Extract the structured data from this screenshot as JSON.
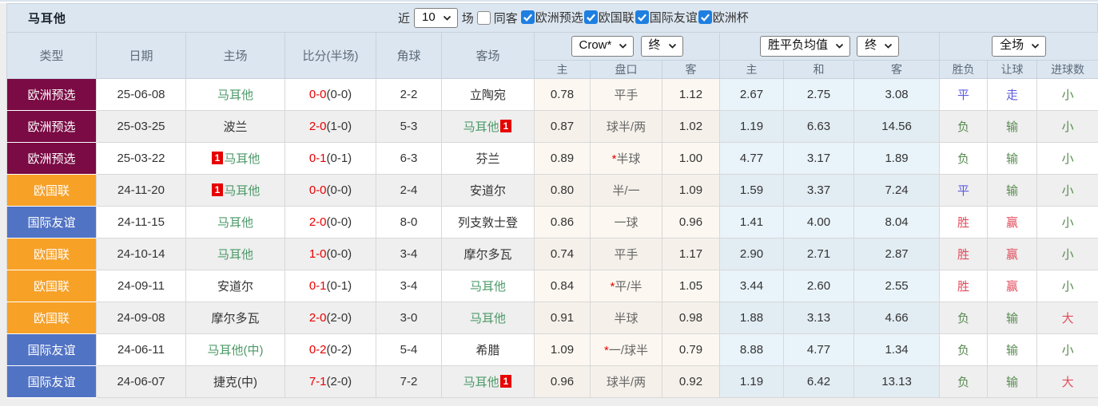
{
  "title": "马耳他",
  "controls": {
    "recent_label": "近",
    "recent_value": "10",
    "recent_suffix": "场",
    "same_away": {
      "label": "同客",
      "checked": false
    },
    "filters": [
      {
        "label": "欧洲预选",
        "checked": true
      },
      {
        "label": "欧国联",
        "checked": true
      },
      {
        "label": "国际友谊",
        "checked": true
      },
      {
        "label": "欧洲杯",
        "checked": true
      }
    ]
  },
  "table": {
    "columns": [
      "类型",
      "日期",
      "主场",
      "比分(半场)",
      "角球",
      "客场"
    ],
    "selects": {
      "bookmaker": "Crow*",
      "bookmaker_time": "终",
      "average": "胜平负均值",
      "average_time": "终",
      "scope": "全场"
    },
    "sub_columns": [
      "主",
      "盘口",
      "客",
      "主",
      "和",
      "客",
      "胜负",
      "让球",
      "进球数"
    ],
    "rows": [
      {
        "type": "欧洲预选",
        "date": "25-06-08",
        "home": {
          "name": "马耳他",
          "focus": true
        },
        "score_ft": "0-0",
        "score_ht": "(0-0)",
        "corner": "2-2",
        "away": {
          "name": "立陶宛",
          "focus": false
        },
        "crow": {
          "home": "0.78",
          "handicap": "平手",
          "star": false,
          "away": "1.12"
        },
        "avg": {
          "win": "2.67",
          "draw": "2.75",
          "lose": "3.08"
        },
        "outcome": {
          "text": "平",
          "color": "blue"
        },
        "handicap_result": {
          "text": "走",
          "color": "blue"
        },
        "goals_result": {
          "text": "小",
          "color": "green"
        }
      },
      {
        "type": "欧洲预选",
        "date": "25-03-25",
        "home": {
          "name": "波兰",
          "focus": false
        },
        "score_ft": "2-0",
        "score_ht": "(1-0)",
        "corner": "5-3",
        "away": {
          "name": "马耳他",
          "focus": true,
          "badge": "1",
          "badge_pos": "after"
        },
        "crow": {
          "home": "0.87",
          "handicap": "球半/两",
          "star": false,
          "away": "1.02"
        },
        "avg": {
          "win": "1.19",
          "draw": "6.63",
          "lose": "14.56"
        },
        "outcome": {
          "text": "负",
          "color": "green"
        },
        "handicap_result": {
          "text": "输",
          "color": "green"
        },
        "goals_result": {
          "text": "小",
          "color": "green"
        }
      },
      {
        "type": "欧洲预选",
        "date": "25-03-22",
        "home": {
          "name": "马耳他",
          "focus": true,
          "badge": "1",
          "badge_pos": "before"
        },
        "score_ft": "0-1",
        "score_ht": "(0-1)",
        "corner": "6-3",
        "away": {
          "name": "芬兰",
          "focus": false
        },
        "crow": {
          "home": "0.89",
          "handicap": "半球",
          "star": true,
          "away": "1.00"
        },
        "avg": {
          "win": "4.77",
          "draw": "3.17",
          "lose": "1.89"
        },
        "outcome": {
          "text": "负",
          "color": "green"
        },
        "handicap_result": {
          "text": "输",
          "color": "green"
        },
        "goals_result": {
          "text": "小",
          "color": "green"
        }
      },
      {
        "type": "欧国联",
        "date": "24-11-20",
        "home": {
          "name": "马耳他",
          "focus": true,
          "badge": "1",
          "badge_pos": "before"
        },
        "score_ft": "0-0",
        "score_ht": "(0-0)",
        "corner": "2-4",
        "away": {
          "name": "安道尔",
          "focus": false
        },
        "crow": {
          "home": "0.80",
          "handicap": "半/一",
          "star": false,
          "away": "1.09"
        },
        "avg": {
          "win": "1.59",
          "draw": "3.37",
          "lose": "7.24"
        },
        "outcome": {
          "text": "平",
          "color": "blue"
        },
        "handicap_result": {
          "text": "输",
          "color": "green"
        },
        "goals_result": {
          "text": "小",
          "color": "green"
        }
      },
      {
        "type": "国际友谊",
        "date": "24-11-15",
        "home": {
          "name": "马耳他",
          "focus": true
        },
        "score_ft": "2-0",
        "score_ht": "(0-0)",
        "corner": "8-0",
        "away": {
          "name": "列支敦士登",
          "focus": false
        },
        "crow": {
          "home": "0.86",
          "handicap": "一球",
          "star": false,
          "away": "0.96"
        },
        "avg": {
          "win": "1.41",
          "draw": "4.00",
          "lose": "8.04"
        },
        "outcome": {
          "text": "胜",
          "color": "red"
        },
        "handicap_result": {
          "text": "赢",
          "color": "red"
        },
        "goals_result": {
          "text": "小",
          "color": "green"
        }
      },
      {
        "type": "欧国联",
        "date": "24-10-14",
        "home": {
          "name": "马耳他",
          "focus": true
        },
        "score_ft": "1-0",
        "score_ht": "(0-0)",
        "corner": "3-4",
        "away": {
          "name": "摩尔多瓦",
          "focus": false
        },
        "crow": {
          "home": "0.74",
          "handicap": "平手",
          "star": false,
          "away": "1.17"
        },
        "avg": {
          "win": "2.90",
          "draw": "2.71",
          "lose": "2.87"
        },
        "outcome": {
          "text": "胜",
          "color": "red"
        },
        "handicap_result": {
          "text": "赢",
          "color": "red"
        },
        "goals_result": {
          "text": "小",
          "color": "green"
        }
      },
      {
        "type": "欧国联",
        "date": "24-09-11",
        "home": {
          "name": "安道尔",
          "focus": false
        },
        "score_ft": "0-1",
        "score_ht": "(0-1)",
        "corner": "3-4",
        "away": {
          "name": "马耳他",
          "focus": true
        },
        "crow": {
          "home": "0.84",
          "handicap": "平/半",
          "star": true,
          "away": "1.05"
        },
        "avg": {
          "win": "3.44",
          "draw": "2.60",
          "lose": "2.55"
        },
        "outcome": {
          "text": "胜",
          "color": "red"
        },
        "handicap_result": {
          "text": "赢",
          "color": "red"
        },
        "goals_result": {
          "text": "小",
          "color": "green"
        }
      },
      {
        "type": "欧国联",
        "date": "24-09-08",
        "home": {
          "name": "摩尔多瓦",
          "focus": false
        },
        "score_ft": "2-0",
        "score_ht": "(2-0)",
        "corner": "3-0",
        "away": {
          "name": "马耳他",
          "focus": true
        },
        "crow": {
          "home": "0.91",
          "handicap": "半球",
          "star": false,
          "away": "0.98"
        },
        "avg": {
          "win": "1.88",
          "draw": "3.13",
          "lose": "4.66"
        },
        "outcome": {
          "text": "负",
          "color": "green"
        },
        "handicap_result": {
          "text": "输",
          "color": "green"
        },
        "goals_result": {
          "text": "大",
          "color": "red"
        }
      },
      {
        "type": "国际友谊",
        "date": "24-06-11",
        "home": {
          "name": "马耳他(中)",
          "focus": true
        },
        "score_ft": "0-2",
        "score_ht": "(0-2)",
        "corner": "5-4",
        "away": {
          "name": "希腊",
          "focus": false
        },
        "crow": {
          "home": "1.09",
          "handicap": "一/球半",
          "star": true,
          "away": "0.79"
        },
        "avg": {
          "win": "8.88",
          "draw": "4.77",
          "lose": "1.34"
        },
        "outcome": {
          "text": "负",
          "color": "green"
        },
        "handicap_result": {
          "text": "输",
          "color": "green"
        },
        "goals_result": {
          "text": "小",
          "color": "green"
        }
      },
      {
        "type": "国际友谊",
        "date": "24-06-07",
        "home": {
          "name": "捷克(中)",
          "focus": false
        },
        "score_ft": "7-1",
        "score_ht": "(2-0)",
        "corner": "7-2",
        "away": {
          "name": "马耳他",
          "focus": true,
          "badge": "1",
          "badge_pos": "after"
        },
        "crow": {
          "home": "0.96",
          "handicap": "球半/两",
          "star": false,
          "away": "0.92"
        },
        "avg": {
          "win": "1.19",
          "draw": "6.42",
          "lose": "13.13"
        },
        "outcome": {
          "text": "负",
          "color": "green"
        },
        "handicap_result": {
          "text": "输",
          "color": "green"
        },
        "goals_result": {
          "text": "大",
          "color": "red"
        }
      }
    ]
  },
  "colors": {
    "type_badges": {
      "欧洲预选": "#7a0b44",
      "欧国联": "#f7a127",
      "国际友谊": "#5173c4"
    },
    "results": {
      "red": "#e14c5c",
      "blue": "#5b5be0",
      "green": "#588b50"
    },
    "focus_team": "#4c9a68",
    "score": "#e80000"
  }
}
